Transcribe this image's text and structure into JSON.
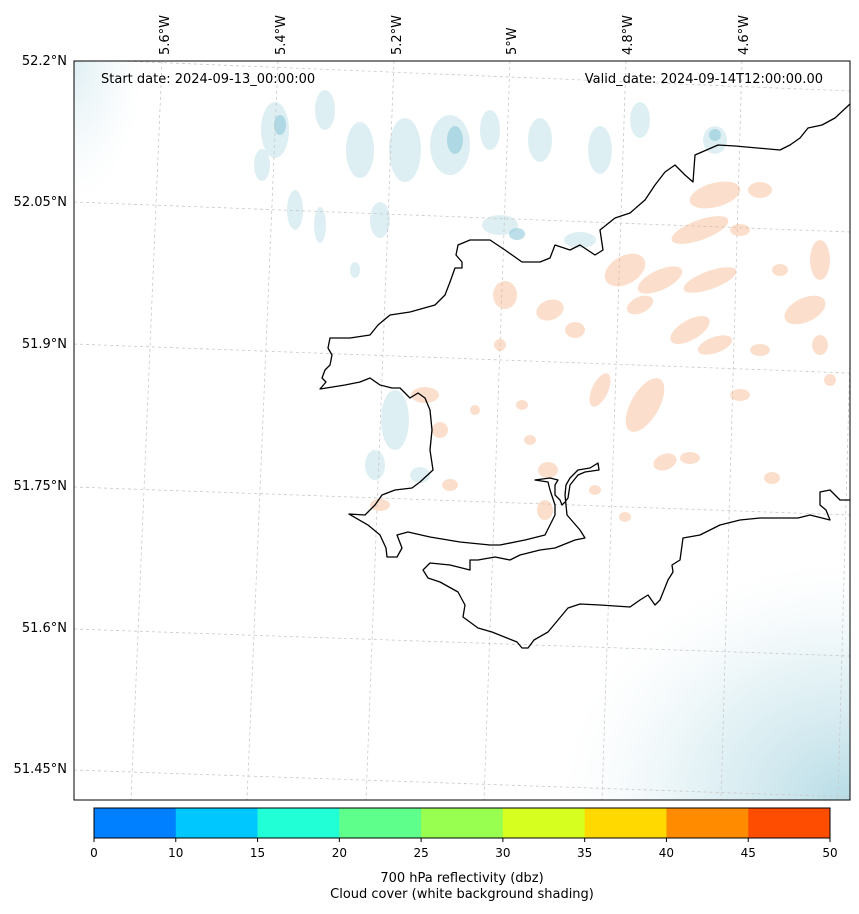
{
  "map": {
    "start_date": "Start date: 2024-09-13_00:00:00",
    "valid_date": "Valid_date: 2024-09-14T12:00:00.00",
    "lon_labels": [
      "5.6°W",
      "5.4°W",
      "5.2°W",
      "5°W",
      "4.8°W",
      "4.6°W"
    ],
    "lat_labels": [
      "52.2°N",
      "52.05°N",
      "51.9°N",
      "51.75°N",
      "51.6°N",
      "51.45°N"
    ],
    "coastline_color": "#000000",
    "gridlines": "dashed light grey",
    "cloud_shading_color": "#9fd0dd",
    "reflectivity_shading_color": "#f6b07f"
  },
  "colorbar": {
    "ticks": [
      "0",
      "10",
      "15",
      "20",
      "25",
      "30",
      "35",
      "40",
      "45",
      "50"
    ],
    "colors": [
      "#0080ff",
      "#00c8ff",
      "#20ffd6",
      "#5fff8c",
      "#98ff50",
      "#d6ff1f",
      "#ffd900",
      "#ff8c00",
      "#ff4d00"
    ],
    "label": "700 hPa reflectivity (dbz)",
    "sublabel": "Cloud cover (white background shading)"
  }
}
